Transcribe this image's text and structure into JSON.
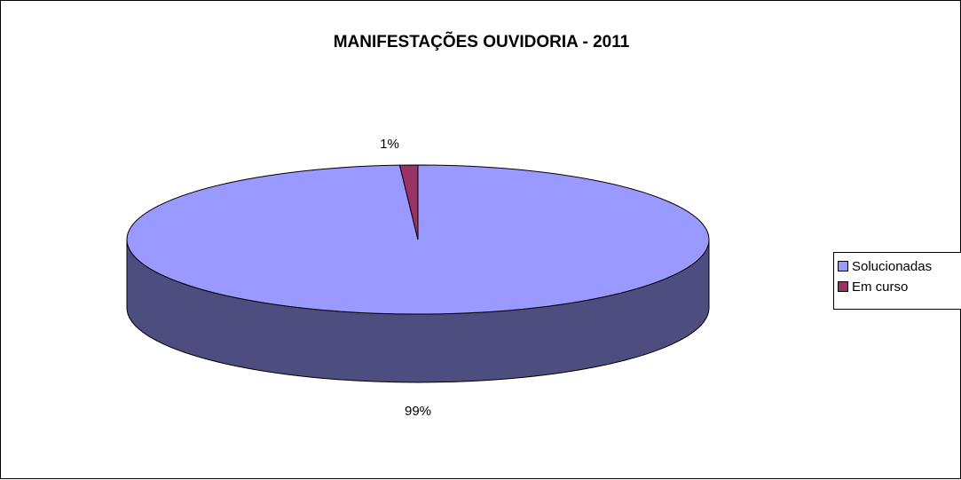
{
  "chart_data": {
    "type": "pie",
    "title": "MANIFESTAÇÕES OUVIDORIA - 2011",
    "categories": [
      "Solucionadas",
      "Em curso"
    ],
    "values": [
      99,
      1
    ],
    "data_labels": [
      "99%",
      "1%"
    ],
    "colors": [
      "#9999ff",
      "#993366"
    ],
    "side_colors": [
      "#4d4d80",
      "#4d1a33"
    ],
    "three_d": true,
    "legend_position": "right"
  }
}
